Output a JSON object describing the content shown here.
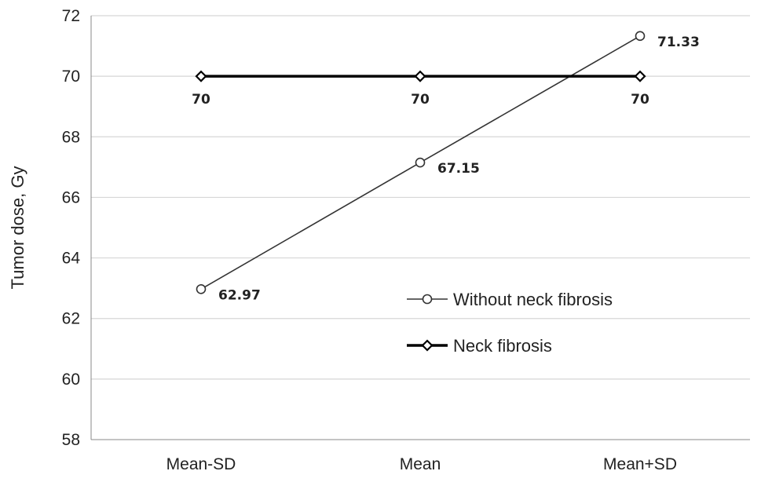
{
  "chart_data": {
    "type": "line",
    "categories": [
      "Mean-SD",
      "Mean",
      "Mean+SD"
    ],
    "ylabel": "Tumor dose, Gy",
    "ylim": [
      58,
      72
    ],
    "yticks": [
      58,
      60,
      62,
      64,
      66,
      68,
      70,
      72
    ],
    "grid": "horizontal",
    "legend_position": "lower-right",
    "series": [
      {
        "name": "Without neck fibrosis",
        "values": [
          62.97,
          67.15,
          71.33
        ],
        "labels": [
          "62.97",
          "67.15",
          "71.33"
        ],
        "marker": "circle-open",
        "color": "#333333"
      },
      {
        "name": "Neck fibrosis",
        "values": [
          70,
          70,
          70
        ],
        "labels": [
          "70",
          "70",
          "70"
        ],
        "marker": "diamond",
        "color": "#000000"
      }
    ]
  }
}
